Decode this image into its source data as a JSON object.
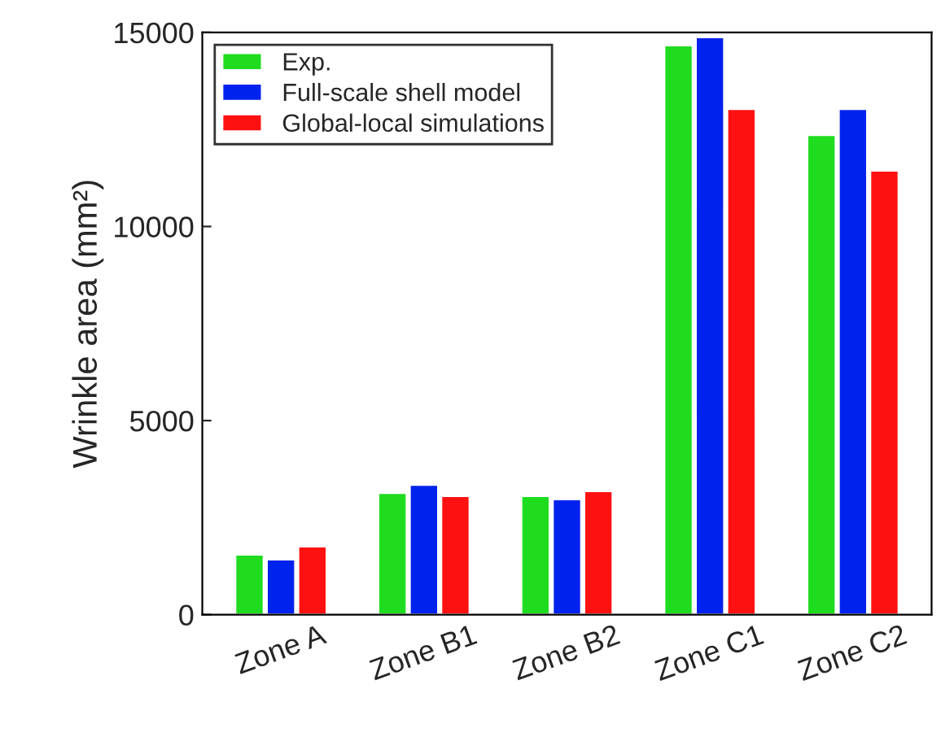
{
  "chart_data": {
    "type": "bar",
    "ylabel": "Wrinkle area (mm²)",
    "categories": [
      "Zone A",
      "Zone B1",
      "Zone B2",
      "Zone C1",
      "Zone C2"
    ],
    "series": [
      {
        "name": "Exp.",
        "color": "#1fdc1f",
        "values": [
          1550,
          3140,
          3060,
          14670,
          12360
        ]
      },
      {
        "name": "Full-scale shell model",
        "color": "#0022ee",
        "values": [
          1425,
          3350,
          2975,
          14880,
          13030
        ]
      },
      {
        "name": "Global-local simulations",
        "color": "#ff1111",
        "values": [
          1760,
          3060,
          3185,
          13030,
          11440
        ]
      }
    ],
    "ylim": [
      0,
      15000
    ],
    "yticks": [
      0,
      5000,
      10000,
      15000
    ],
    "grid": false,
    "legend": "top left"
  }
}
